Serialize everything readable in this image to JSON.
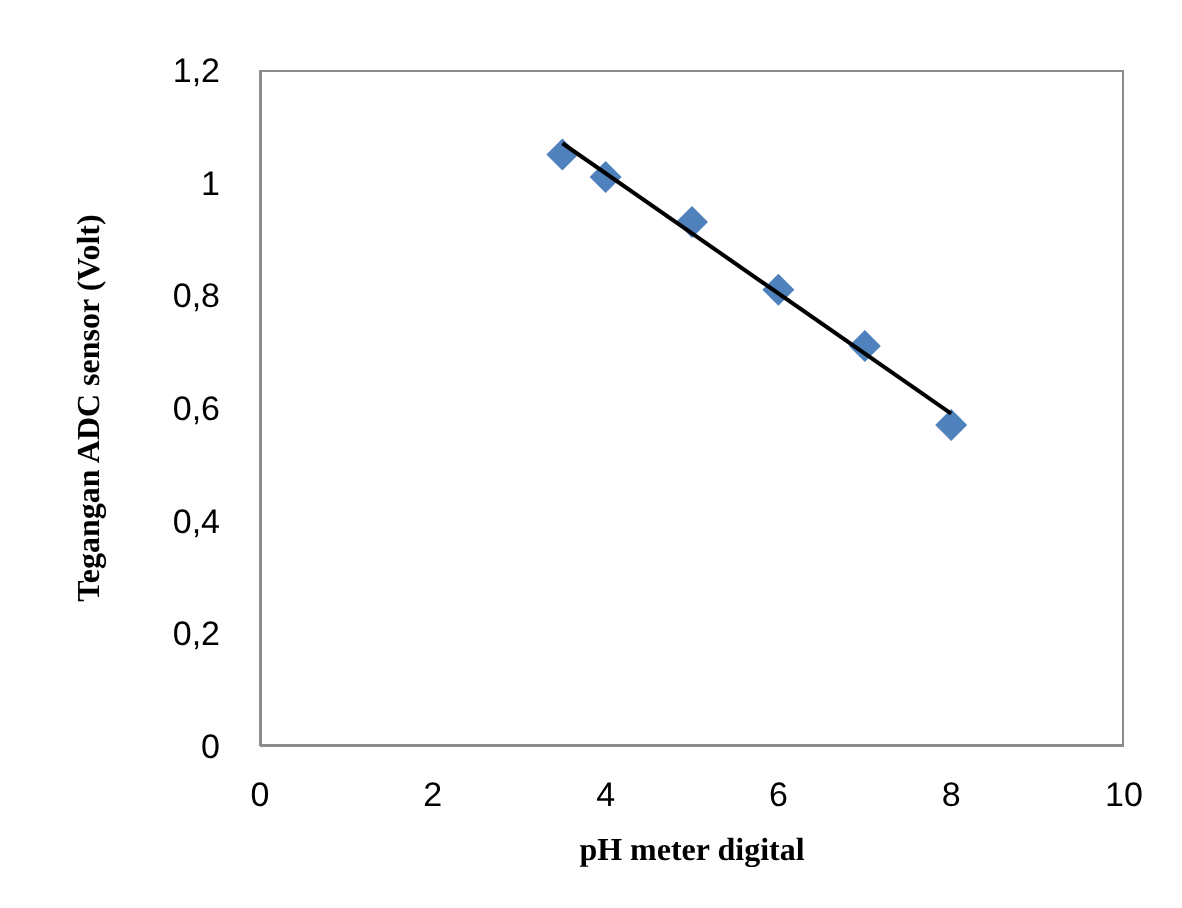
{
  "chart_data": {
    "type": "scatter",
    "xlabel": "pH  meter digital",
    "ylabel": "Tegangan ADC sensor  (Volt)",
    "xlim": [
      0,
      10
    ],
    "xticks": [
      0,
      2,
      4,
      6,
      8,
      10
    ],
    "ylim": [
      0,
      1.2
    ],
    "yticks": [
      0,
      {
        "value": 0.2,
        "label": "0,2"
      },
      {
        "value": 0.4,
        "label": "0,4"
      },
      {
        "value": 0.6,
        "label": "0,6"
      },
      {
        "value": 0.8,
        "label": "0,8"
      },
      1,
      {
        "value": 1.2,
        "label": "1,2"
      }
    ],
    "grid": false,
    "legend": false,
    "marker": "diamond",
    "series": [
      {
        "color": "#4f81bd",
        "x": [
          3.5,
          4,
          5,
          6,
          7,
          8
        ],
        "values": [
          1.05,
          1.01,
          0.93,
          0.81,
          0.71,
          0.57
        ]
      },
      {
        "type": "line",
        "color": "#000000",
        "x": [
          3.5,
          8
        ],
        "values": [
          1.07,
          0.59
        ],
        "line_style": "solid",
        "marker": "none"
      }
    ]
  }
}
